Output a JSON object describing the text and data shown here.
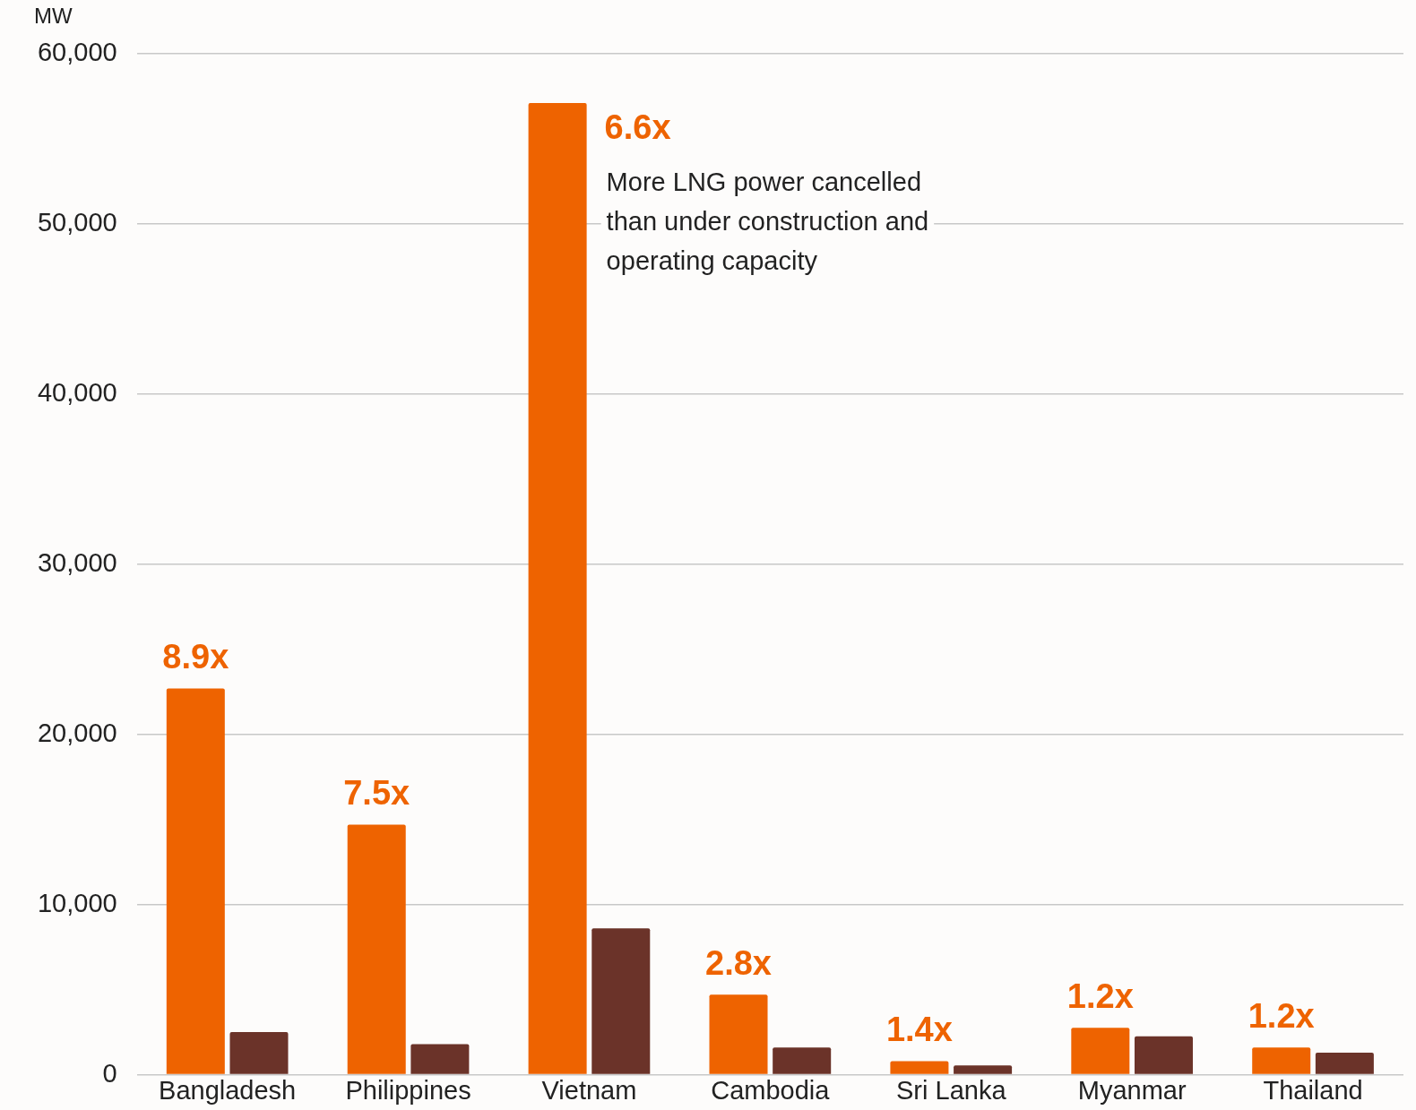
{
  "chart_data": {
    "type": "bar",
    "ylabel": "MW",
    "categories": [
      "Bangladesh",
      "Philippines",
      "Vietnam",
      "Cambodia",
      "Sri Lanka",
      "Myanmar",
      "Thailand"
    ],
    "series": [
      {
        "color": "#ee6300",
        "values": [
          22700,
          14700,
          57100,
          4700,
          800,
          2750,
          1600
        ]
      },
      {
        "color": "#6b3329",
        "values": [
          2500,
          1800,
          8600,
          1600,
          550,
          2250,
          1300
        ]
      }
    ],
    "ylim": [
      0,
      60000
    ],
    "yticks": [
      {
        "value": 0,
        "label": "0"
      },
      {
        "value": 10000,
        "label": "10,000"
      },
      {
        "value": 20000,
        "label": "20,000"
      },
      {
        "value": 30000,
        "label": "30,000"
      },
      {
        "value": 40000,
        "label": "40,000"
      },
      {
        "value": 50000,
        "label": "50,000"
      },
      {
        "value": 60000,
        "label": "60,000"
      }
    ],
    "grid": "y",
    "legend": false,
    "annotations": [
      {
        "text": "8.9x",
        "x": "Bangladesh",
        "y": 22700
      },
      {
        "text": "7.5x",
        "x": "Philippines",
        "y": 14700
      },
      {
        "text": "6.6x",
        "x": "Vietnam",
        "y": 57100
      },
      {
        "text": "More LNG power cancelled\nthan under construction and\noperating capacity",
        "x": "Vietnam",
        "y": 57100
      },
      {
        "text": "2.8x",
        "x": "Cambodia",
        "y": 4700
      },
      {
        "text": "1.4x",
        "x": "Sri Lanka",
        "y": 800
      },
      {
        "text": "1.2x",
        "x": "Myanmar",
        "y": 2750
      },
      {
        "text": "1.2x",
        "x": "Thailand",
        "y": 1600
      }
    ]
  }
}
